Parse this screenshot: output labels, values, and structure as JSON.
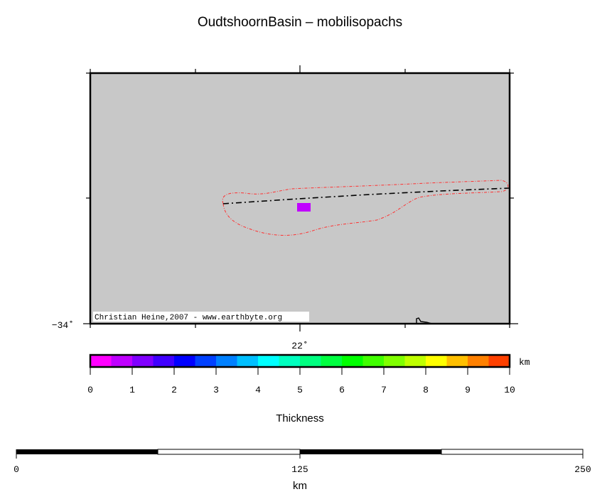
{
  "title": "OudtshoornBasin – mobilisopachs",
  "map": {
    "background_color": "#c8c8c8",
    "lat_label": "−34˚",
    "lon_label": "22˚",
    "credit": "Christian Heine,2007 - www.earthbyte.org",
    "outline_color": "#ff3030",
    "marker_color": "#c000ff"
  },
  "colorbar": {
    "unit": "km",
    "title": "Thickness",
    "ticks": [
      "0",
      "1",
      "2",
      "3",
      "4",
      "5",
      "6",
      "7",
      "8",
      "9",
      "10"
    ],
    "colors": [
      "#ff00ff",
      "#bf00ff",
      "#8000ff",
      "#4000ff",
      "#0000ff",
      "#0040ff",
      "#0080ff",
      "#00bfff",
      "#00ffff",
      "#00ffbf",
      "#00ff80",
      "#00ff40",
      "#00ff00",
      "#40ff00",
      "#80ff00",
      "#bfff00",
      "#ffff00",
      "#ffbf00",
      "#ff8000",
      "#ff4000"
    ]
  },
  "scalebar": {
    "ticks": [
      "0",
      "125",
      "250"
    ],
    "unit": "km"
  }
}
